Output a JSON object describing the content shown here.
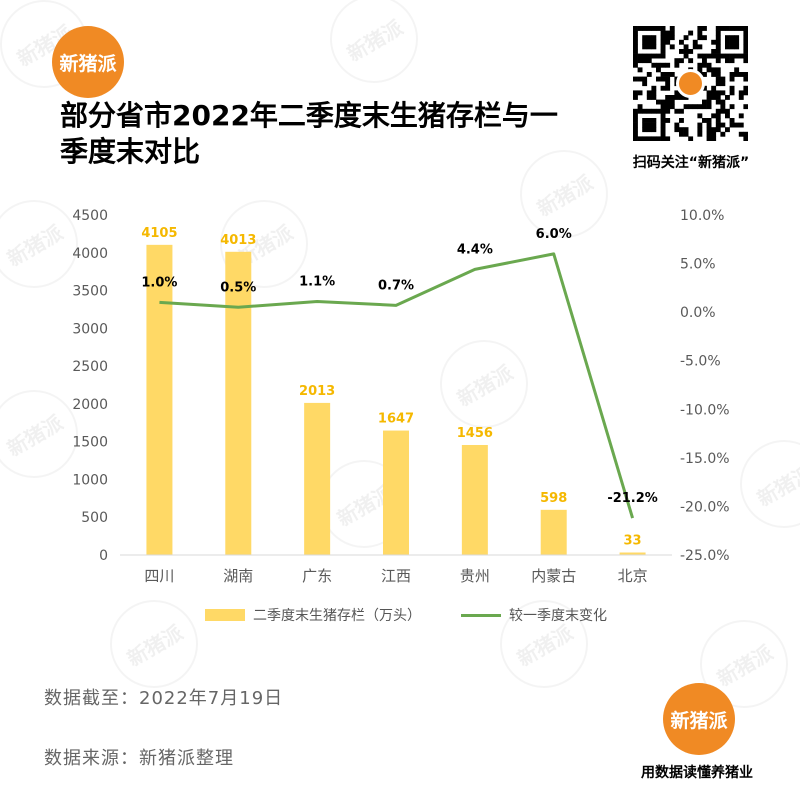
{
  "brand": {
    "logo_text": "新猪派",
    "qr_caption": "扫码关注“新猪派”",
    "slogan": "用数据读懂养猪业",
    "color": "#f08a24"
  },
  "header": {
    "title": "部分省市2022年二季度末生猪存栏与一季度末对比"
  },
  "footer": {
    "date_note": "数据截至：2022年7月19日",
    "source_note": "数据来源：新猪派整理"
  },
  "chart_data": {
    "type": "bar",
    "categories": [
      "四川",
      "湖南",
      "广东",
      "江西",
      "贵州",
      "内蒙古",
      "北京"
    ],
    "series": [
      {
        "name": "二季度末生猪存栏（万头）",
        "type": "bar",
        "axis": "left",
        "color": "#ffd966",
        "label_color": "#f5b800",
        "values": [
          4105,
          4013,
          2013,
          1647,
          1456,
          598,
          33
        ],
        "labels": [
          "4105",
          "4013",
          "2013",
          "1647",
          "1456",
          "598",
          "33"
        ]
      },
      {
        "name": "较一季度末变化",
        "type": "line",
        "axis": "right",
        "color": "#6aa84f",
        "label_color": "#000000",
        "values": [
          1.0,
          0.5,
          1.1,
          0.7,
          4.4,
          6.0,
          -21.2
        ],
        "labels": [
          "1.0%",
          "0.5%",
          "1.1%",
          "0.7%",
          "4.4%",
          "6.0%",
          "-21.2%"
        ]
      }
    ],
    "y_left": {
      "range": [
        0,
        4500
      ],
      "ticks": [
        0,
        500,
        1000,
        1500,
        2000,
        2500,
        3000,
        3500,
        4000,
        4500
      ],
      "tick_labels": [
        "0",
        "500",
        "1000",
        "1500",
        "2000",
        "2500",
        "3000",
        "3500",
        "4000",
        "4500"
      ]
    },
    "y_right": {
      "range": [
        -25,
        10
      ],
      "ticks": [
        -25,
        -20,
        -15,
        -10,
        -5,
        0,
        5,
        10
      ],
      "tick_labels": [
        "-25.0%",
        "-20.0%",
        "-15.0%",
        "-10.0%",
        "-5.0%",
        "0.0%",
        "5.0%",
        "10.0%"
      ]
    },
    "grid": false,
    "legend_position": "bottom"
  }
}
